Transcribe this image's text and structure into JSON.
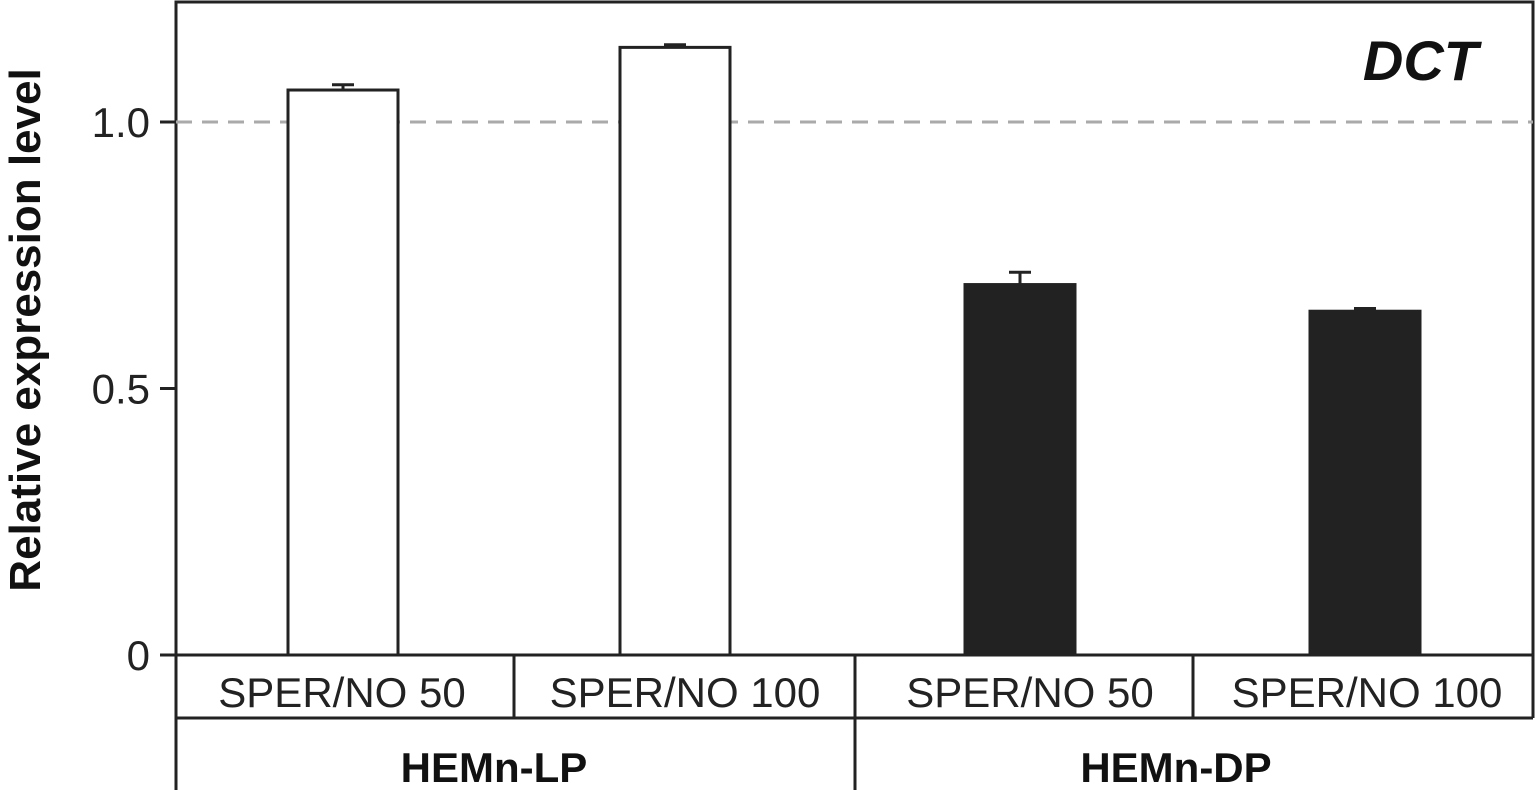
{
  "chart_data": {
    "type": "bar",
    "title": "DCT",
    "ylabel": "Relative expression level",
    "xlabel": "",
    "ylim": [
      0,
      1.2
    ],
    "yticks": [
      {
        "value": 0,
        "label": "0"
      },
      {
        "value": 0.5,
        "label": "0.5"
      },
      {
        "value": 1.0,
        "label": "1.0"
      }
    ],
    "reference_line": {
      "value": 1.0,
      "style": "dashed",
      "color": "#aaaaaa"
    },
    "groups": [
      "HEMn-LP",
      "HEMn-DP"
    ],
    "categories": [
      "SPER/NO 50",
      "SPER/NO 100",
      "SPER/NO 50",
      "SPER/NO 100"
    ],
    "bars": [
      {
        "group": "HEMn-LP",
        "category": "SPER/NO 50",
        "value": 1.06,
        "error": 0.01,
        "fill": "#ffffff"
      },
      {
        "group": "HEMn-LP",
        "category": "SPER/NO 100",
        "value": 1.14,
        "error": 0.005,
        "fill": "#ffffff"
      },
      {
        "group": "HEMn-DP",
        "category": "SPER/NO 50",
        "value": 0.695,
        "error": 0.023,
        "fill": "#222222"
      },
      {
        "group": "HEMn-DP",
        "category": "SPER/NO 100",
        "value": 0.645,
        "error": 0.005,
        "fill": "#222222"
      }
    ],
    "grid": false,
    "legend": "none"
  }
}
